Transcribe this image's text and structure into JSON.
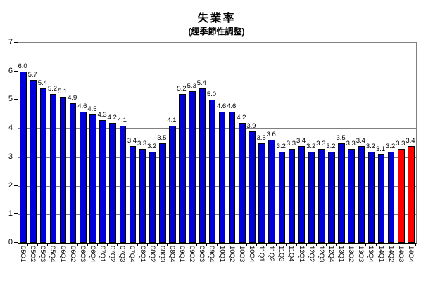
{
  "title": "失業率",
  "subtitle": "(經季節性調整)",
  "chart_data": {
    "type": "bar",
    "title": "失業率",
    "subtitle": "(經季節性調整)",
    "categories": [
      "05Q1",
      "05Q2",
      "05Q3",
      "05Q4",
      "06Q1",
      "06Q2",
      "06Q3",
      "06Q4",
      "07Q1",
      "07Q2",
      "07Q3",
      "07Q4",
      "08Q1",
      "08Q2",
      "08Q3",
      "08Q4",
      "09Q1",
      "09Q2",
      "09Q3",
      "09Q4",
      "10Q1",
      "10Q2",
      "10Q3",
      "10Q4",
      "11Q1",
      "11Q2",
      "11Q3",
      "11Q4",
      "12Q1",
      "12Q2",
      "12Q3",
      "12Q4",
      "13Q1",
      "13Q2",
      "13Q3",
      "13Q4",
      "14Q1",
      "14Q2",
      "14Q3",
      "14Q4"
    ],
    "values": [
      6.0,
      5.7,
      5.4,
      5.2,
      5.1,
      4.9,
      4.6,
      4.5,
      4.3,
      4.2,
      4.1,
      3.4,
      3.3,
      3.2,
      3.5,
      4.1,
      5.2,
      5.3,
      5.4,
      5.0,
      4.6,
      4.6,
      4.2,
      3.9,
      3.5,
      3.6,
      3.2,
      3.3,
      3.4,
      3.2,
      3.3,
      3.2,
      3.5,
      3.3,
      3.4,
      3.2,
      3.1,
      3.2,
      3.3,
      3.4
    ],
    "data_labels_visible": true,
    "highlight_indices": [
      38,
      39
    ],
    "bar_color": "#0000DD",
    "highlight_color": "#FF0000",
    "bar_border_color": "#000000",
    "gridline_color": "#808080",
    "axis_color": "#000000",
    "ylim": [
      0,
      7
    ],
    "yticks": [
      "0",
      "1",
      "2",
      "3",
      "4",
      "5",
      "6",
      "7"
    ],
    "grid": "horizontal",
    "legend": "none",
    "xlabel": "",
    "ylabel": ""
  }
}
